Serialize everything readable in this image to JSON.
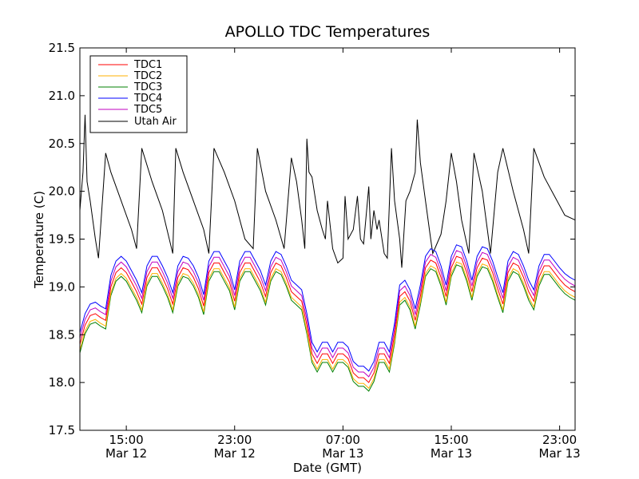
{
  "chart_data": {
    "type": "line",
    "title": "APOLLO TDC Temperatures",
    "xlabel": "Date (GMT)",
    "ylabel": "Temperature (C)",
    "xlim_hours": [
      11.5,
      35.5
    ],
    "ylim": [
      17.5,
      21.5
    ],
    "grid": false,
    "legend_position": "top-left",
    "y_ticks": [
      17.5,
      18.0,
      18.5,
      19.0,
      19.5,
      20.0,
      20.5,
      21.0,
      21.5
    ],
    "y_tick_labels": [
      "17.5",
      "18.0",
      "18.5",
      "19.0",
      "19.5",
      "20.0",
      "20.5",
      "21.0",
      "21.5"
    ],
    "x_ticks": [
      {
        "hour": 13.75,
        "time": "15:00",
        "date": "Mar 12"
      },
      {
        "hour": 19.0,
        "time": "23:00",
        "date": "Mar 12"
      },
      {
        "hour": 24.25,
        "time": "07:00",
        "date": "Mar 13"
      },
      {
        "hour": 29.5,
        "time": "15:00",
        "date": "Mar 13"
      },
      {
        "hour": 34.75,
        "time": "23:00",
        "date": "Mar 13"
      }
    ],
    "series": [
      {
        "name": "TDC1",
        "color": "#ff0000",
        "offset": 0.0
      },
      {
        "name": "TDC2",
        "color": "#ffb000",
        "offset": -0.06
      },
      {
        "name": "TDC3",
        "color": "#008000",
        "offset": -0.09
      },
      {
        "name": "TDC4",
        "color": "#0000ff",
        "offset": 0.12
      },
      {
        "name": "TDC5",
        "color": "#c000c0",
        "offset": 0.06
      },
      {
        "name": "Utah Air",
        "color": "#000000"
      }
    ],
    "tdc1_points": [
      [
        11.5,
        18.4
      ],
      [
        11.75,
        18.6
      ],
      [
        12.0,
        18.7
      ],
      [
        12.25,
        18.72
      ],
      [
        12.5,
        18.68
      ],
      [
        12.75,
        18.65
      ],
      [
        13.0,
        19.0
      ],
      [
        13.25,
        19.15
      ],
      [
        13.5,
        19.2
      ],
      [
        13.75,
        19.15
      ],
      [
        14.0,
        19.05
      ],
      [
        14.25,
        18.95
      ],
      [
        14.5,
        18.82
      ],
      [
        14.75,
        19.1
      ],
      [
        15.0,
        19.2
      ],
      [
        15.25,
        19.2
      ],
      [
        15.5,
        19.1
      ],
      [
        15.75,
        18.98
      ],
      [
        16.0,
        18.82
      ],
      [
        16.25,
        19.1
      ],
      [
        16.5,
        19.2
      ],
      [
        16.75,
        19.18
      ],
      [
        17.0,
        19.1
      ],
      [
        17.25,
        18.98
      ],
      [
        17.5,
        18.8
      ],
      [
        17.75,
        19.15
      ],
      [
        18.0,
        19.25
      ],
      [
        18.25,
        19.25
      ],
      [
        18.5,
        19.15
      ],
      [
        18.75,
        19.05
      ],
      [
        19.0,
        18.85
      ],
      [
        19.25,
        19.15
      ],
      [
        19.5,
        19.25
      ],
      [
        19.75,
        19.25
      ],
      [
        20.0,
        19.15
      ],
      [
        20.25,
        19.05
      ],
      [
        20.5,
        18.9
      ],
      [
        20.75,
        19.15
      ],
      [
        21.0,
        19.25
      ],
      [
        21.25,
        19.22
      ],
      [
        21.5,
        19.1
      ],
      [
        21.75,
        18.95
      ],
      [
        22.0,
        18.9
      ],
      [
        22.25,
        18.85
      ],
      [
        22.5,
        18.6
      ],
      [
        22.75,
        18.3
      ],
      [
        23.0,
        18.2
      ],
      [
        23.25,
        18.3
      ],
      [
        23.5,
        18.3
      ],
      [
        23.75,
        18.2
      ],
      [
        24.0,
        18.3
      ],
      [
        24.25,
        18.3
      ],
      [
        24.5,
        18.25
      ],
      [
        24.75,
        18.1
      ],
      [
        25.0,
        18.05
      ],
      [
        25.25,
        18.05
      ],
      [
        25.5,
        18.0
      ],
      [
        25.75,
        18.1
      ],
      [
        26.0,
        18.3
      ],
      [
        26.25,
        18.3
      ],
      [
        26.5,
        18.2
      ],
      [
        26.75,
        18.5
      ],
      [
        27.0,
        18.9
      ],
      [
        27.25,
        18.95
      ],
      [
        27.5,
        18.85
      ],
      [
        27.75,
        18.65
      ],
      [
        28.0,
        18.9
      ],
      [
        28.25,
        19.2
      ],
      [
        28.5,
        19.28
      ],
      [
        28.75,
        19.25
      ],
      [
        29.0,
        19.1
      ],
      [
        29.25,
        18.9
      ],
      [
        29.5,
        19.2
      ],
      [
        29.75,
        19.32
      ],
      [
        30.0,
        19.3
      ],
      [
        30.25,
        19.15
      ],
      [
        30.5,
        18.95
      ],
      [
        30.75,
        19.2
      ],
      [
        31.0,
        19.3
      ],
      [
        31.25,
        19.28
      ],
      [
        31.5,
        19.15
      ],
      [
        31.75,
        18.98
      ],
      [
        32.0,
        18.82
      ],
      [
        32.25,
        19.15
      ],
      [
        32.5,
        19.25
      ],
      [
        32.75,
        19.22
      ],
      [
        33.0,
        19.1
      ],
      [
        33.25,
        18.95
      ],
      [
        33.5,
        18.85
      ],
      [
        33.75,
        19.1
      ],
      [
        34.0,
        19.22
      ],
      [
        34.25,
        19.22
      ],
      [
        34.5,
        19.15
      ],
      [
        34.75,
        19.08
      ],
      [
        35.0,
        19.02
      ],
      [
        35.25,
        18.98
      ],
      [
        35.5,
        18.95
      ]
    ],
    "air_points": [
      [
        11.5,
        19.8
      ],
      [
        11.65,
        20.2
      ],
      [
        11.75,
        20.8
      ],
      [
        11.85,
        20.1
      ],
      [
        12.0,
        19.9
      ],
      [
        12.25,
        19.5
      ],
      [
        12.4,
        19.3
      ],
      [
        12.75,
        20.4
      ],
      [
        13.0,
        20.2
      ],
      [
        13.5,
        19.9
      ],
      [
        14.0,
        19.6
      ],
      [
        14.25,
        19.4
      ],
      [
        14.5,
        20.45
      ],
      [
        15.0,
        20.1
      ],
      [
        15.5,
        19.8
      ],
      [
        16.0,
        19.35
      ],
      [
        16.15,
        20.45
      ],
      [
        16.5,
        20.2
      ],
      [
        17.0,
        19.9
      ],
      [
        17.5,
        19.6
      ],
      [
        17.75,
        19.35
      ],
      [
        18.0,
        20.45
      ],
      [
        18.5,
        20.2
      ],
      [
        19.0,
        19.9
      ],
      [
        19.5,
        19.5
      ],
      [
        19.9,
        19.4
      ],
      [
        20.1,
        20.45
      ],
      [
        20.5,
        20.0
      ],
      [
        21.0,
        19.7
      ],
      [
        21.4,
        19.4
      ],
      [
        21.75,
        20.35
      ],
      [
        22.0,
        20.1
      ],
      [
        22.25,
        19.7
      ],
      [
        22.4,
        19.4
      ],
      [
        22.5,
        20.55
      ],
      [
        22.6,
        20.2
      ],
      [
        22.75,
        20.15
      ],
      [
        23.0,
        19.8
      ],
      [
        23.25,
        19.6
      ],
      [
        23.4,
        19.5
      ],
      [
        23.5,
        19.9
      ],
      [
        23.75,
        19.4
      ],
      [
        24.0,
        19.25
      ],
      [
        24.25,
        19.3
      ],
      [
        24.35,
        19.95
      ],
      [
        24.5,
        19.5
      ],
      [
        24.75,
        19.6
      ],
      [
        24.95,
        19.95
      ],
      [
        25.1,
        19.5
      ],
      [
        25.25,
        19.45
      ],
      [
        25.5,
        20.05
      ],
      [
        25.6,
        19.5
      ],
      [
        25.75,
        19.8
      ],
      [
        25.9,
        19.6
      ],
      [
        26.0,
        19.7
      ],
      [
        26.25,
        19.35
      ],
      [
        26.4,
        19.3
      ],
      [
        26.6,
        20.45
      ],
      [
        26.75,
        19.9
      ],
      [
        27.0,
        19.5
      ],
      [
        27.1,
        19.2
      ],
      [
        27.3,
        19.9
      ],
      [
        27.5,
        20.0
      ],
      [
        27.75,
        20.2
      ],
      [
        27.85,
        20.75
      ],
      [
        28.0,
        20.3
      ],
      [
        28.25,
        19.9
      ],
      [
        28.5,
        19.5
      ],
      [
        28.6,
        19.35
      ],
      [
        29.0,
        19.55
      ],
      [
        29.25,
        19.9
      ],
      [
        29.5,
        20.4
      ],
      [
        29.75,
        20.1
      ],
      [
        30.0,
        19.7
      ],
      [
        30.35,
        19.35
      ],
      [
        30.6,
        20.4
      ],
      [
        31.0,
        20.0
      ],
      [
        31.4,
        19.35
      ],
      [
        31.75,
        20.2
      ],
      [
        32.0,
        20.45
      ],
      [
        32.5,
        20.0
      ],
      [
        33.0,
        19.6
      ],
      [
        33.25,
        19.35
      ],
      [
        33.5,
        20.45
      ],
      [
        34.0,
        20.15
      ],
      [
        34.5,
        19.95
      ],
      [
        35.0,
        19.75
      ],
      [
        35.5,
        19.7
      ]
    ]
  }
}
